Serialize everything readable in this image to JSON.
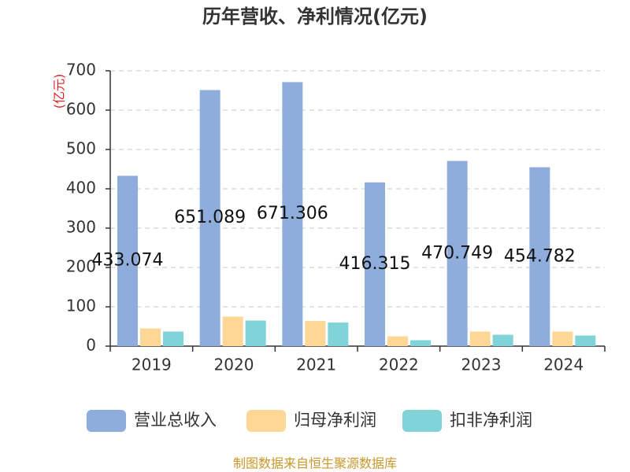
{
  "chart_data": {
    "type": "bar",
    "title": "历年营收、净利情况(亿元)",
    "y_label": "(亿元)",
    "categories": [
      "2019",
      "2020",
      "2021",
      "2022",
      "2023",
      "2024"
    ],
    "series": [
      {
        "name": "营业总收入",
        "color": "#8eaddc",
        "values": [
          433.074,
          651.089,
          671.306,
          416.315,
          470.749,
          454.782
        ]
      },
      {
        "name": "归母净利润",
        "color": "#fed797",
        "values": [
          45,
          75,
          64,
          25,
          37,
          37
        ]
      },
      {
        "name": "扣非净利润",
        "color": "#80d3d6",
        "values": [
          37,
          65,
          60,
          15,
          29,
          27
        ]
      }
    ],
    "ylim": [
      0,
      700
    ],
    "yticks": [
      0,
      100,
      200,
      300,
      400,
      500,
      600,
      700
    ],
    "grid": true,
    "legend": "bottom",
    "source": "制图数据来自恒生聚源数据库"
  }
}
